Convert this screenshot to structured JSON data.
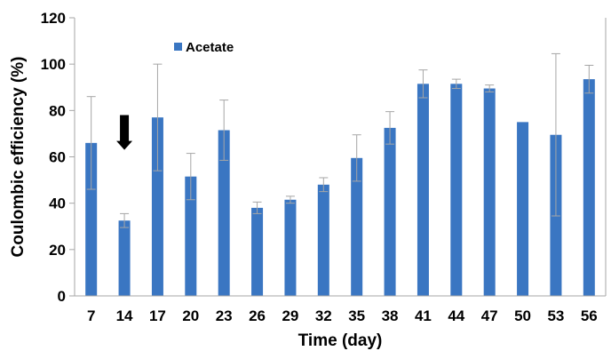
{
  "chart_data": {
    "type": "bar",
    "categories": [
      "7",
      "14",
      "17",
      "20",
      "23",
      "26",
      "29",
      "32",
      "35",
      "38",
      "41",
      "44",
      "47",
      "50",
      "53",
      "56"
    ],
    "series": [
      {
        "name": "Acetate",
        "values": [
          66,
          32.5,
          77,
          51.5,
          71.5,
          38,
          41.5,
          48,
          59.5,
          72.5,
          91.5,
          91.5,
          89.5,
          75,
          69.5,
          93.5
        ],
        "error_upper": [
          20,
          3,
          23,
          10,
          13,
          2.5,
          1.5,
          3,
          10,
          7,
          6,
          2,
          1.5,
          0,
          35,
          6
        ],
        "error_lower": [
          20,
          3,
          23,
          10,
          13,
          2.5,
          1.5,
          3,
          10,
          7,
          6,
          2,
          1.5,
          0,
          35,
          6
        ],
        "color": "#3a76c2"
      }
    ],
    "xlabel": "Time (day)",
    "ylabel": "Coulombic efficiency (%)",
    "ylim": [
      0,
      120
    ],
    "yticks": [
      0,
      20,
      40,
      60,
      80,
      100,
      120
    ],
    "grid": false,
    "legend_position": "top-left",
    "annotations": [
      {
        "type": "arrow-down",
        "category": "14",
        "value": 68
      }
    ],
    "axis_color": "#a6a6a6",
    "error_bar_color": "#a6a6a6"
  }
}
